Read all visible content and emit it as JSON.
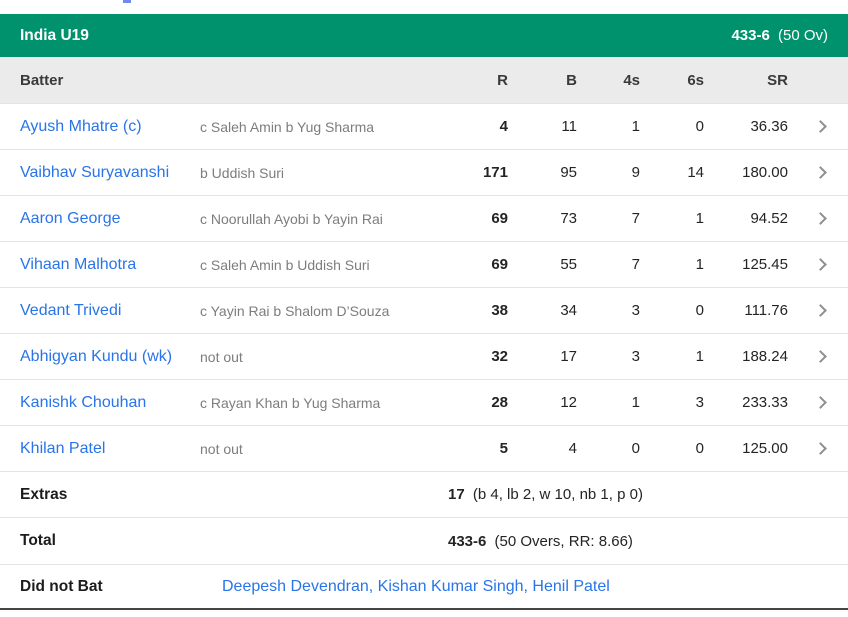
{
  "header": {
    "team": "India U19",
    "score_bold": "433-6",
    "score_rest": "(50 Ov)"
  },
  "columns": {
    "batter": "Batter",
    "r": "R",
    "b": "B",
    "fours": "4s",
    "sixes": "6s",
    "sr": "SR"
  },
  "batters": [
    {
      "name": "Ayush Mhatre (c)",
      "dismissal": "c Saleh Amin b Yug Sharma",
      "r": "4",
      "b": "11",
      "fours": "1",
      "sixes": "0",
      "sr": "36.36"
    },
    {
      "name": "Vaibhav Suryavanshi",
      "dismissal": "b Uddish Suri",
      "r": "171",
      "b": "95",
      "fours": "9",
      "sixes": "14",
      "sr": "180.00"
    },
    {
      "name": "Aaron George",
      "dismissal": "c Noorullah Ayobi b Yayin Rai",
      "r": "69",
      "b": "73",
      "fours": "7",
      "sixes": "1",
      "sr": "94.52"
    },
    {
      "name": "Vihaan Malhotra",
      "dismissal": "c Saleh Amin b Uddish Suri",
      "r": "69",
      "b": "55",
      "fours": "7",
      "sixes": "1",
      "sr": "125.45"
    },
    {
      "name": "Vedant Trivedi",
      "dismissal": "c Yayin Rai b Shalom D’Souza",
      "r": "38",
      "b": "34",
      "fours": "3",
      "sixes": "0",
      "sr": "111.76"
    },
    {
      "name": "Abhigyan Kundu (wk)",
      "dismissal": "not out",
      "r": "32",
      "b": "17",
      "fours": "3",
      "sixes": "1",
      "sr": "188.24"
    },
    {
      "name": "Kanishk Chouhan",
      "dismissal": "c Rayan Khan b Yug Sharma",
      "r": "28",
      "b": "12",
      "fours": "1",
      "sixes": "3",
      "sr": "233.33"
    },
    {
      "name": "Khilan Patel",
      "dismissal": "not out",
      "r": "5",
      "b": "4",
      "fours": "0",
      "sixes": "0",
      "sr": "125.00"
    }
  ],
  "extras": {
    "label": "Extras",
    "value_bold": "17",
    "value_rest": "(b 4, lb 2, w 10, nb 1, p 0)"
  },
  "total": {
    "label": "Total",
    "value_bold": "433-6",
    "value_rest": "(50 Overs, RR: 8.66)"
  },
  "did_not_bat": {
    "label": "Did not Bat",
    "players": "Deepesh Devendran, Kishan Kumar Singh, Henil Patel"
  },
  "colors": {
    "accent_green": "#00926C",
    "link_blue": "#2874E8",
    "header_bg": "#EBEBEB"
  }
}
